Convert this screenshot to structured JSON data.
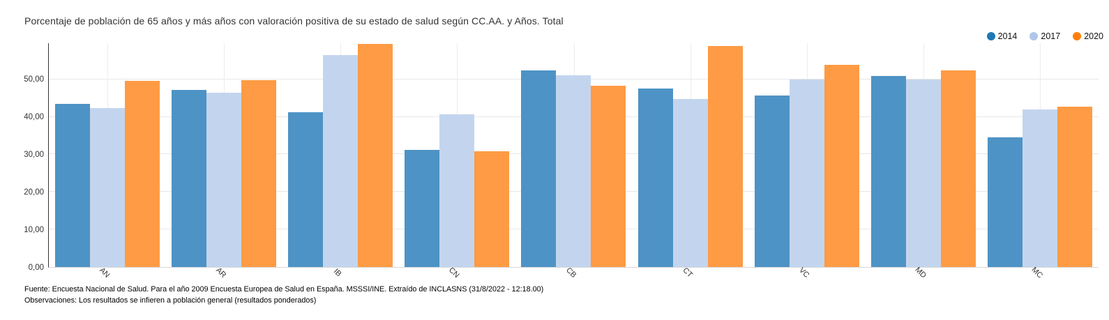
{
  "title": "Porcentaje de población de 65 años y más años con valoración positiva de su estado de salud según CC.AA. y Años. Total",
  "footer": {
    "source_line": "Fuente: Encuesta Nacional de Salud. Para el año 2009 Encuesta Europea de Salud en España. MSSSI/INE. Extraído de INCLASNS (31/8/2022 - 12:18.00)",
    "observations_line": "Observaciones: Los resultados se infieren a población general (resultados ponderados)"
  },
  "chart_data": {
    "type": "bar",
    "title": "Porcentaje de población de 65 años y más años con valoración positiva de su estado de salud según CC.AA. y Años. Total",
    "categories": [
      "AN",
      "AR",
      "IB",
      "CN",
      "CB",
      "CT",
      "VC",
      "MD",
      "MC"
    ],
    "series": [
      {
        "name": "2014",
        "legend_color": "#1f77b4",
        "bar_color": "#4e93c5",
        "values": [
          43.4,
          47.1,
          41.2,
          31.2,
          52.3,
          47.6,
          45.7,
          50.9,
          34.5
        ]
      },
      {
        "name": "2017",
        "legend_color": "#aec7e8",
        "bar_color": "#c3d5ee",
        "values": [
          42.3,
          46.4,
          56.5,
          40.7,
          51.0,
          44.8,
          50.0,
          49.9,
          41.9
        ]
      },
      {
        "name": "2020",
        "legend_color": "#ff7f0e",
        "bar_color": "#fe9b44",
        "values": [
          49.5,
          49.8,
          59.5,
          30.9,
          48.3,
          58.8,
          53.9,
          52.3,
          42.7
        ]
      }
    ],
    "xlabel": "",
    "ylabel": "",
    "ylim": [
      0,
      59.6
    ],
    "yticks": [
      {
        "value": 0,
        "label": "0,00"
      },
      {
        "value": 10,
        "label": "10,00"
      },
      {
        "value": 20,
        "label": "20,00"
      },
      {
        "value": 30,
        "label": "30,00"
      },
      {
        "value": 40,
        "label": "40,00"
      },
      {
        "value": 50,
        "label": "50,00"
      }
    ],
    "grid": true,
    "legend_position": "top-right"
  }
}
